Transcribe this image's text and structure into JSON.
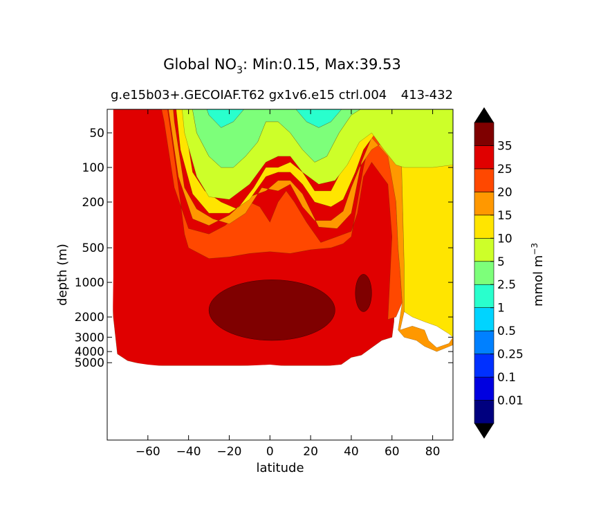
{
  "chart_data": {
    "type": "heatmap",
    "title": {
      "main": "Global NO",
      "subscript": "3",
      "rest": ": Min:0.15, Max:39.53"
    },
    "subtitle": "g.e15b03+.GECOIAF.T62 gx1v6.e15 ctrl.004",
    "subtitle_right": "413-432",
    "xlabel": "latitude",
    "ylabel": "depth (m)",
    "xlim": [
      -80,
      90
    ],
    "ylim": [
      5500,
      10
    ],
    "yscale": "log",
    "x_ticks": [
      -60,
      -40,
      -20,
      0,
      20,
      40,
      60,
      80
    ],
    "x_tick_labels": [
      "−60",
      "−40",
      "−20",
      "0",
      "20",
      "40",
      "60",
      "80"
    ],
    "y_ticks": [
      50,
      100,
      200,
      500,
      1000,
      2000,
      3000,
      4000,
      5000
    ],
    "y_tick_labels": [
      "50",
      "100",
      "200",
      "500",
      "1000",
      "2000",
      "3000",
      "4000",
      "5000"
    ],
    "colorbar": {
      "label_main": "mmol m",
      "label_exp": "−3",
      "levels": [
        "0.01",
        "0.1",
        "0.25",
        "0.5",
        "1",
        "2.5",
        "5",
        "10",
        "15",
        "20",
        "25",
        "35"
      ],
      "colors": [
        "#00007f",
        "#0000e0",
        "#0030ff",
        "#0080ff",
        "#00d4ff",
        "#29ffcd",
        "#7dff7a",
        "#cdff29",
        "#ffe500",
        "#ff9800",
        "#ff4800",
        "#e00000",
        "#7f0000"
      ],
      "extend": "both"
    },
    "depth_levels_m": [
      25,
      60,
      120,
      400,
      800,
      1500,
      2500,
      3500,
      4500
    ],
    "contour_boundaries": {
      "lat": [
        -77,
        -70,
        -60,
        -50,
        -40,
        -30,
        -20,
        -10,
        0,
        5,
        10,
        15,
        20,
        25,
        30,
        35,
        40,
        45,
        50,
        55,
        60,
        65,
        70,
        80,
        90
      ],
      "nitrate_35": [
        {
          "lat_range": [
            -30,
            32
          ],
          "depth_range": [
            950,
            3200
          ]
        },
        {
          "lat_range": [
            42,
            50
          ],
          "depth_range": [
            850,
            1800
          ]
        }
      ],
      "ocean_floor_m": [
        4400,
        4900,
        5200,
        5400,
        5400,
        5400,
        5400,
        5300,
        5200,
        5300,
        5400,
        5400,
        5400,
        5400,
        5300,
        5200,
        5000,
        4800,
        4500,
        4000,
        3400,
        3000,
        3500,
        4000,
        4200
      ]
    },
    "grid": false,
    "legend": "colorbar-right"
  }
}
